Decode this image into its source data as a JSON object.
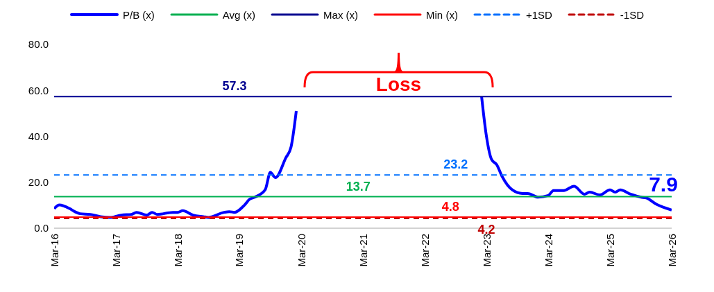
{
  "chart_data": {
    "type": "line",
    "legend": "top",
    "grid": false,
    "marker": "none",
    "xlim": [
      "2016-03",
      "2026-03"
    ],
    "xticks": [
      {
        "value": "2016-03",
        "label": "Mar-16"
      },
      {
        "value": "2017-03",
        "label": "Mar-17"
      },
      {
        "value": "2018-03",
        "label": "Mar-18"
      },
      {
        "value": "2019-03",
        "label": "Mar-19"
      },
      {
        "value": "2020-03",
        "label": "Mar-20"
      },
      {
        "value": "2021-03",
        "label": "Mar-21"
      },
      {
        "value": "2022-03",
        "label": "Mar-22"
      },
      {
        "value": "2023-03",
        "label": "Mar-23"
      },
      {
        "value": "2024-03",
        "label": "Mar-24"
      },
      {
        "value": "2025-03",
        "label": "Mar-25"
      },
      {
        "value": "2026-03",
        "label": "Mar-26"
      }
    ],
    "ylim": [
      0,
      80
    ],
    "yticks": [
      {
        "value": 0,
        "label": "0.0"
      },
      {
        "value": 20,
        "label": "20.0"
      },
      {
        "value": 40,
        "label": "40.0"
      },
      {
        "value": 60,
        "label": "60.0"
      },
      {
        "value": 80,
        "label": "80.0"
      }
    ],
    "series": [
      {
        "name": "P/B (x)",
        "color": "#0000ff",
        "line_style": "solid",
        "x": [
          "2016-03",
          "2016-04",
          "2016-06",
          "2016-07",
          "2016-08",
          "2016-10",
          "2016-12",
          "2017-02",
          "2017-04",
          "2017-06",
          "2017-07",
          "2017-09",
          "2017-10",
          "2017-11",
          "2018-02",
          "2018-03",
          "2018-04",
          "2018-06",
          "2018-08",
          "2018-09",
          "2018-12",
          "2019-01",
          "2019-02",
          "2019-04",
          "2019-05",
          "2019-06",
          "2019-08",
          "2019-09",
          "2019-10",
          "2019-12",
          "2020-01",
          "2020-02",
          "2020-03",
          "2023-01",
          "2023-02",
          "2023-03",
          "2023-04",
          "2023-05",
          "2023-06",
          "2023-08",
          "2023-10",
          "2023-11",
          "2024-01",
          "2024-03",
          "2024-04",
          "2024-06",
          "2024-08",
          "2024-10",
          "2024-11",
          "2025-01",
          "2025-03",
          "2025-04",
          "2025-05",
          "2025-07",
          "2025-09",
          "2025-10",
          "2025-12",
          "2026-01",
          "2026-03"
        ],
        "values": [
          8.5,
          10.1,
          8.5,
          7.2,
          6.3,
          6.0,
          5.0,
          4.7,
          5.7,
          6.0,
          6.9,
          5.7,
          6.9,
          6.0,
          6.9,
          6.9,
          7.6,
          5.7,
          5.0,
          4.7,
          6.9,
          7.2,
          6.9,
          10.1,
          12.6,
          13.5,
          16.7,
          24.3,
          22.0,
          30.6,
          35.3,
          51.0,
          null,
          null,
          57.3,
          40.3,
          29.9,
          27.7,
          22.7,
          16.7,
          15.1,
          15.1,
          13.5,
          14.2,
          16.4,
          16.4,
          18.3,
          14.8,
          15.7,
          14.5,
          16.7,
          15.7,
          16.7,
          14.8,
          13.5,
          13.2,
          10.4,
          9.4,
          7.9
        ]
      },
      {
        "name": "Avg (x)",
        "color": "#00b050",
        "line_style": "solid",
        "x": [
          "2016-03",
          "2026-03"
        ],
        "values": [
          13.7,
          13.7
        ]
      },
      {
        "name": "Max (x)",
        "color": "#000090",
        "line_style": "solid",
        "x": [
          "2016-03",
          "2026-03"
        ],
        "values": [
          57.3,
          57.3
        ]
      },
      {
        "name": "Min (x)",
        "color": "#ff0000",
        "line_style": "solid",
        "x": [
          "2016-03",
          "2026-03"
        ],
        "values": [
          4.8,
          4.8
        ]
      },
      {
        "name": "+1SD",
        "color": "#0070ff",
        "line_style": "dashed",
        "x": [
          "2016-03",
          "2026-03"
        ],
        "values": [
          23.2,
          23.2
        ]
      },
      {
        "name": "-1SD",
        "color": "#c00000",
        "line_style": "dashed",
        "x": [
          "2016-03",
          "2026-03"
        ],
        "values": [
          4.2,
          4.2
        ]
      }
    ],
    "annotations": [
      {
        "text": "57.3",
        "x": "2019-02",
        "y": 57.3
      },
      {
        "text": "13.7",
        "x": "2021-02",
        "y": 13.7
      },
      {
        "text": "4.8",
        "x": "2022-08",
        "y": 4.8
      },
      {
        "text": "4.2",
        "x": "2023-03",
        "y": 4.2
      },
      {
        "text": "23.2",
        "x": "2022-09",
        "y": 23.2
      },
      {
        "text": "7.9",
        "x": "2026-03",
        "y": 7.9
      },
      "Loss"
    ]
  }
}
